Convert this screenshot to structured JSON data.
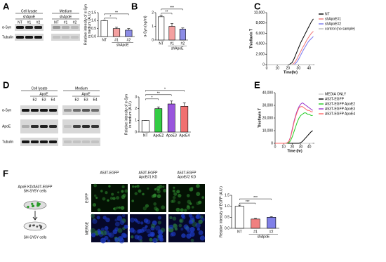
{
  "panel_labels": [
    "A",
    "B",
    "C",
    "D",
    "E",
    "F"
  ],
  "blot_a": {
    "groups": [
      "Cell lysate",
      "Medium"
    ],
    "sublabel": "shApoE",
    "lanes": [
      "NT",
      "#1",
      "#2",
      "NT",
      "#1",
      "#2"
    ],
    "rows": [
      "α-Syn",
      "Tubulin"
    ]
  },
  "blot_d": {
    "groups": [
      "Cell lysate",
      "Medium"
    ],
    "sublabel": "ApoE",
    "lanes": [
      "E2",
      "E3",
      "E4",
      "E2",
      "E3",
      "E4"
    ],
    "rows": [
      "α-Syn",
      "ApoE",
      "Tubulin"
    ]
  },
  "panel_f": {
    "top_cells": [
      "ApoE KD/A53T-EGFP",
      "SH-SY5Y cells"
    ],
    "bottom_cells": "SH-SY5Y cells",
    "columns": [
      [
        "A53T-EGFP"
      ],
      [
        "A53T-EGFP",
        "ApoE#1 KD"
      ],
      [
        "A53T-EGFP",
        "ApoE#2 KD"
      ]
    ],
    "rows": [
      "EGFP",
      "MERGE"
    ]
  },
  "chart_data": [
    {
      "type": "bar",
      "categories": [
        "NT",
        "#1",
        "#2"
      ],
      "values": [
        1.0,
        0.5,
        0.4
      ],
      "errors": [
        0.02,
        0.08,
        0.1
      ],
      "colors": [
        "#ffffff",
        "#f4a0a0",
        "#8c8ce6"
      ],
      "group_label": "shApoE",
      "ylabel": [
        "Relative intensity of α-Syn",
        "in medium (A.U.)"
      ],
      "ylim": [
        0,
        1.5
      ],
      "yticks": [
        {
          "value": 0,
          "label": "0.0"
        },
        {
          "value": 0.5,
          "label": "0.5"
        },
        {
          "value": 1,
          "label": "1.0"
        },
        {
          "value": 1.5,
          "label": "1.5"
        }
      ],
      "annotations": [
        "*",
        "**"
      ]
    },
    {
      "type": "bar",
      "categories": [
        "NT",
        "#1",
        "#2"
      ],
      "values": [
        1.7,
        1.0,
        0.8
      ],
      "errors": [
        0.1,
        0.2,
        0.08
      ],
      "colors": [
        "#ffffff",
        "#f4a0a0",
        "#8c8ce6"
      ],
      "group_label": "shApoE",
      "ylabel": [
        "α-Syn (ng/ml)"
      ],
      "ylim": [
        0,
        2
      ],
      "yticks": [
        0,
        1,
        2
      ],
      "annotations": [
        "**",
        "***"
      ]
    },
    {
      "type": "line",
      "ylabel": "Thioflavin T",
      "xlabel": "Time(hr)",
      "x": [
        0,
        2,
        4,
        6,
        8,
        10,
        12,
        14,
        16,
        18,
        20,
        22,
        24,
        26,
        28,
        30,
        32,
        34,
        36,
        38,
        40,
        42,
        44
      ],
      "series": [
        {
          "name": "NT",
          "color": "#000000",
          "values": [
            0,
            0,
            0,
            0,
            0,
            0,
            0,
            0,
            0,
            0,
            0,
            100,
            400,
            1200,
            2200,
            3200,
            4200,
            5000,
            5800,
            6600,
            7400,
            8200,
            8800
          ]
        },
        {
          "name": "shApoE#1",
          "color": "#f07878",
          "values": [
            0,
            0,
            0,
            0,
            0,
            0,
            0,
            0,
            0,
            0,
            0,
            0,
            0,
            300,
            900,
            1700,
            2500,
            3300,
            4000,
            4800,
            5400,
            6000,
            6400
          ]
        },
        {
          "name": "shApoE#2",
          "color": "#7878f0",
          "values": [
            0,
            0,
            0,
            0,
            0,
            0,
            0,
            0,
            0,
            0,
            0,
            0,
            0,
            0,
            400,
            1000,
            1800,
            2600,
            3300,
            4000,
            4600,
            5000,
            5400
          ]
        },
        {
          "name": "control (no sample)",
          "color": "#bbbbbb",
          "values": [
            0,
            0,
            0,
            0,
            0,
            0,
            0,
            0,
            0,
            0,
            0,
            0,
            0,
            0,
            0,
            0,
            0,
            0,
            0,
            0,
            0,
            0,
            0
          ]
        }
      ],
      "xlim": [
        0,
        45
      ],
      "xticks": [
        0,
        10,
        20,
        30,
        40
      ],
      "ylim": [
        0,
        10000
      ],
      "yticks": [
        0,
        {
          "value": 2000,
          "label": "2,000"
        },
        {
          "value": 4000,
          "label": "4,000"
        },
        {
          "value": 6000,
          "label": "6,000"
        },
        {
          "value": 8000,
          "label": "8,000"
        },
        {
          "value": 10000,
          "label": "10,000"
        }
      ]
    },
    {
      "type": "bar",
      "categories": [
        "NT",
        "ApoE2",
        "ApoE3",
        "ApoE4"
      ],
      "values": [
        1.0,
        2.0,
        2.4,
        2.2
      ],
      "errors": [
        0,
        0.15,
        0.25,
        0.3
      ],
      "colors": [
        "#ffffff",
        "#33cc44",
        "#9955dd",
        "#f07070"
      ],
      "ylabel": [
        "Relative intensity of α-Syn",
        "in medium (A.U.)"
      ],
      "ylim": [
        0,
        3
      ],
      "yticks": [
        0,
        1,
        2,
        3
      ],
      "annotations": [
        "*",
        "**",
        "*"
      ]
    },
    {
      "type": "line",
      "ylabel": "Thioflavin T",
      "xlabel": "Time (hr)",
      "x": [
        0,
        2,
        4,
        6,
        8,
        10,
        12,
        14,
        16,
        18,
        20,
        22,
        24,
        26,
        28,
        30,
        32,
        34,
        36,
        38,
        40,
        42,
        44
      ],
      "series": [
        {
          "name": "MEDIA ONLY",
          "color": "#cccccc",
          "values": [
            0,
            0,
            0,
            0,
            0,
            0,
            0,
            0,
            0,
            0,
            0,
            0,
            0,
            0,
            0,
            0,
            0,
            0,
            0,
            0,
            0,
            0,
            0
          ]
        },
        {
          "name": "A53T-EGFP",
          "color": "#000000",
          "values": [
            0,
            0,
            0,
            0,
            0,
            0,
            0,
            0,
            0,
            0,
            0,
            0,
            0,
            0,
            0,
            500,
            1500,
            3000,
            4500,
            6000,
            7500,
            9000,
            10000
          ]
        },
        {
          "name": "A53T-EGFP ApoE2",
          "color": "#22cc22",
          "values": [
            0,
            0,
            0,
            0,
            0,
            0,
            0,
            0,
            500,
            2000,
            5000,
            9000,
            13000,
            17000,
            20000,
            22000,
            23000,
            24000,
            24000,
            23000,
            23000,
            22000,
            22000
          ]
        },
        {
          "name": "A53T-EGFP ApoE3",
          "color": "#9933cc",
          "values": [
            0,
            0,
            0,
            0,
            0,
            0,
            0,
            300,
            1500,
            5000,
            11000,
            17000,
            22000,
            26000,
            29000,
            31000,
            32000,
            31000,
            30000,
            29000,
            28000,
            27000,
            26000
          ]
        },
        {
          "name": "A53T-EGFP ApoE4",
          "color": "#ff6666",
          "values": [
            0,
            0,
            0,
            0,
            0,
            0,
            0,
            300,
            1500,
            4500,
            10000,
            16000,
            21000,
            25000,
            28000,
            29000,
            29000,
            28000,
            27000,
            26000,
            26000,
            25000,
            25000
          ]
        }
      ],
      "xlim": [
        0,
        46
      ],
      "xticks": [
        0,
        10,
        20,
        30,
        40
      ],
      "ylim": [
        0,
        40000
      ],
      "yticks": [
        0,
        {
          "value": 10000,
          "label": "10,000"
        },
        {
          "value": 20000,
          "label": "20,000"
        },
        {
          "value": 30000,
          "label": "30,000"
        },
        {
          "value": 40000,
          "label": "40,000"
        }
      ]
    },
    {
      "type": "bar",
      "categories": [
        "NT",
        "#1",
        "#2"
      ],
      "values": [
        1.0,
        0.42,
        0.5
      ],
      "errors": [
        0.05,
        0.03,
        0.03
      ],
      "colors": [
        "#ffffff",
        "#f08080",
        "#8080e8"
      ],
      "group_label": "shApoE",
      "ylabel": [
        "Relative intensity of EGFP (A.U.)"
      ],
      "ylim": [
        0,
        1.5
      ],
      "yticks": [
        {
          "value": 0,
          "label": "0.0"
        },
        {
          "value": 0.5,
          "label": "0.5"
        },
        {
          "value": 1,
          "label": "1.0"
        },
        {
          "value": 1.5,
          "label": "1.5"
        }
      ],
      "annotations": [
        "***",
        "***"
      ]
    }
  ]
}
